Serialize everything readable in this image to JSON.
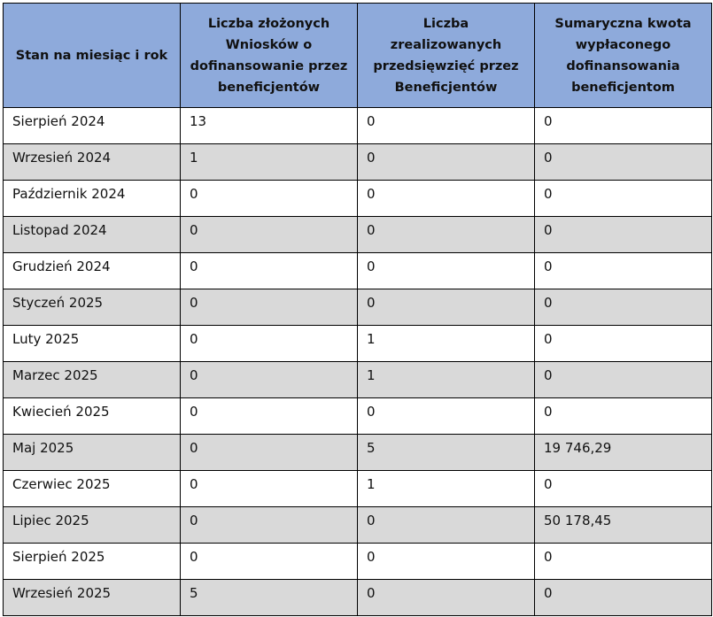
{
  "table": {
    "headers": [
      "Stan na miesiąc i rok",
      "Liczba złożonych Wniosków o dofinansowanie przez beneficjentów",
      "Liczba zrealizowanych przedsięwzięć przez Beneficjentów",
      "Sumaryczna kwota wypłaconego dofinansowania beneficjentom"
    ],
    "rows": [
      [
        "Sierpień 2024",
        "13",
        "0",
        "0"
      ],
      [
        "Wrzesień 2024",
        "1",
        "0",
        "0"
      ],
      [
        "Październik 2024",
        "0",
        "0",
        "0"
      ],
      [
        "Listopad 2024",
        "0",
        "0",
        "0"
      ],
      [
        "Grudzień 2024",
        "0",
        "0",
        "0"
      ],
      [
        "Styczeń 2025",
        "0",
        "0",
        "0"
      ],
      [
        "Luty 2025",
        "0",
        "1",
        "0"
      ],
      [
        "Marzec 2025",
        "0",
        "1",
        "0"
      ],
      [
        "Kwiecień 2025",
        "0",
        "0",
        "0"
      ],
      [
        "Maj 2025",
        "0",
        "5",
        "19 746,29"
      ],
      [
        "Czerwiec 2025",
        "0",
        "1",
        "0"
      ],
      [
        "Lipiec 2025",
        "0",
        "0",
        "50 178,45"
      ],
      [
        "Sierpień 2025",
        "0",
        "0",
        "0"
      ],
      [
        "Wrzesień 2025",
        "5",
        "0",
        "0"
      ]
    ]
  }
}
